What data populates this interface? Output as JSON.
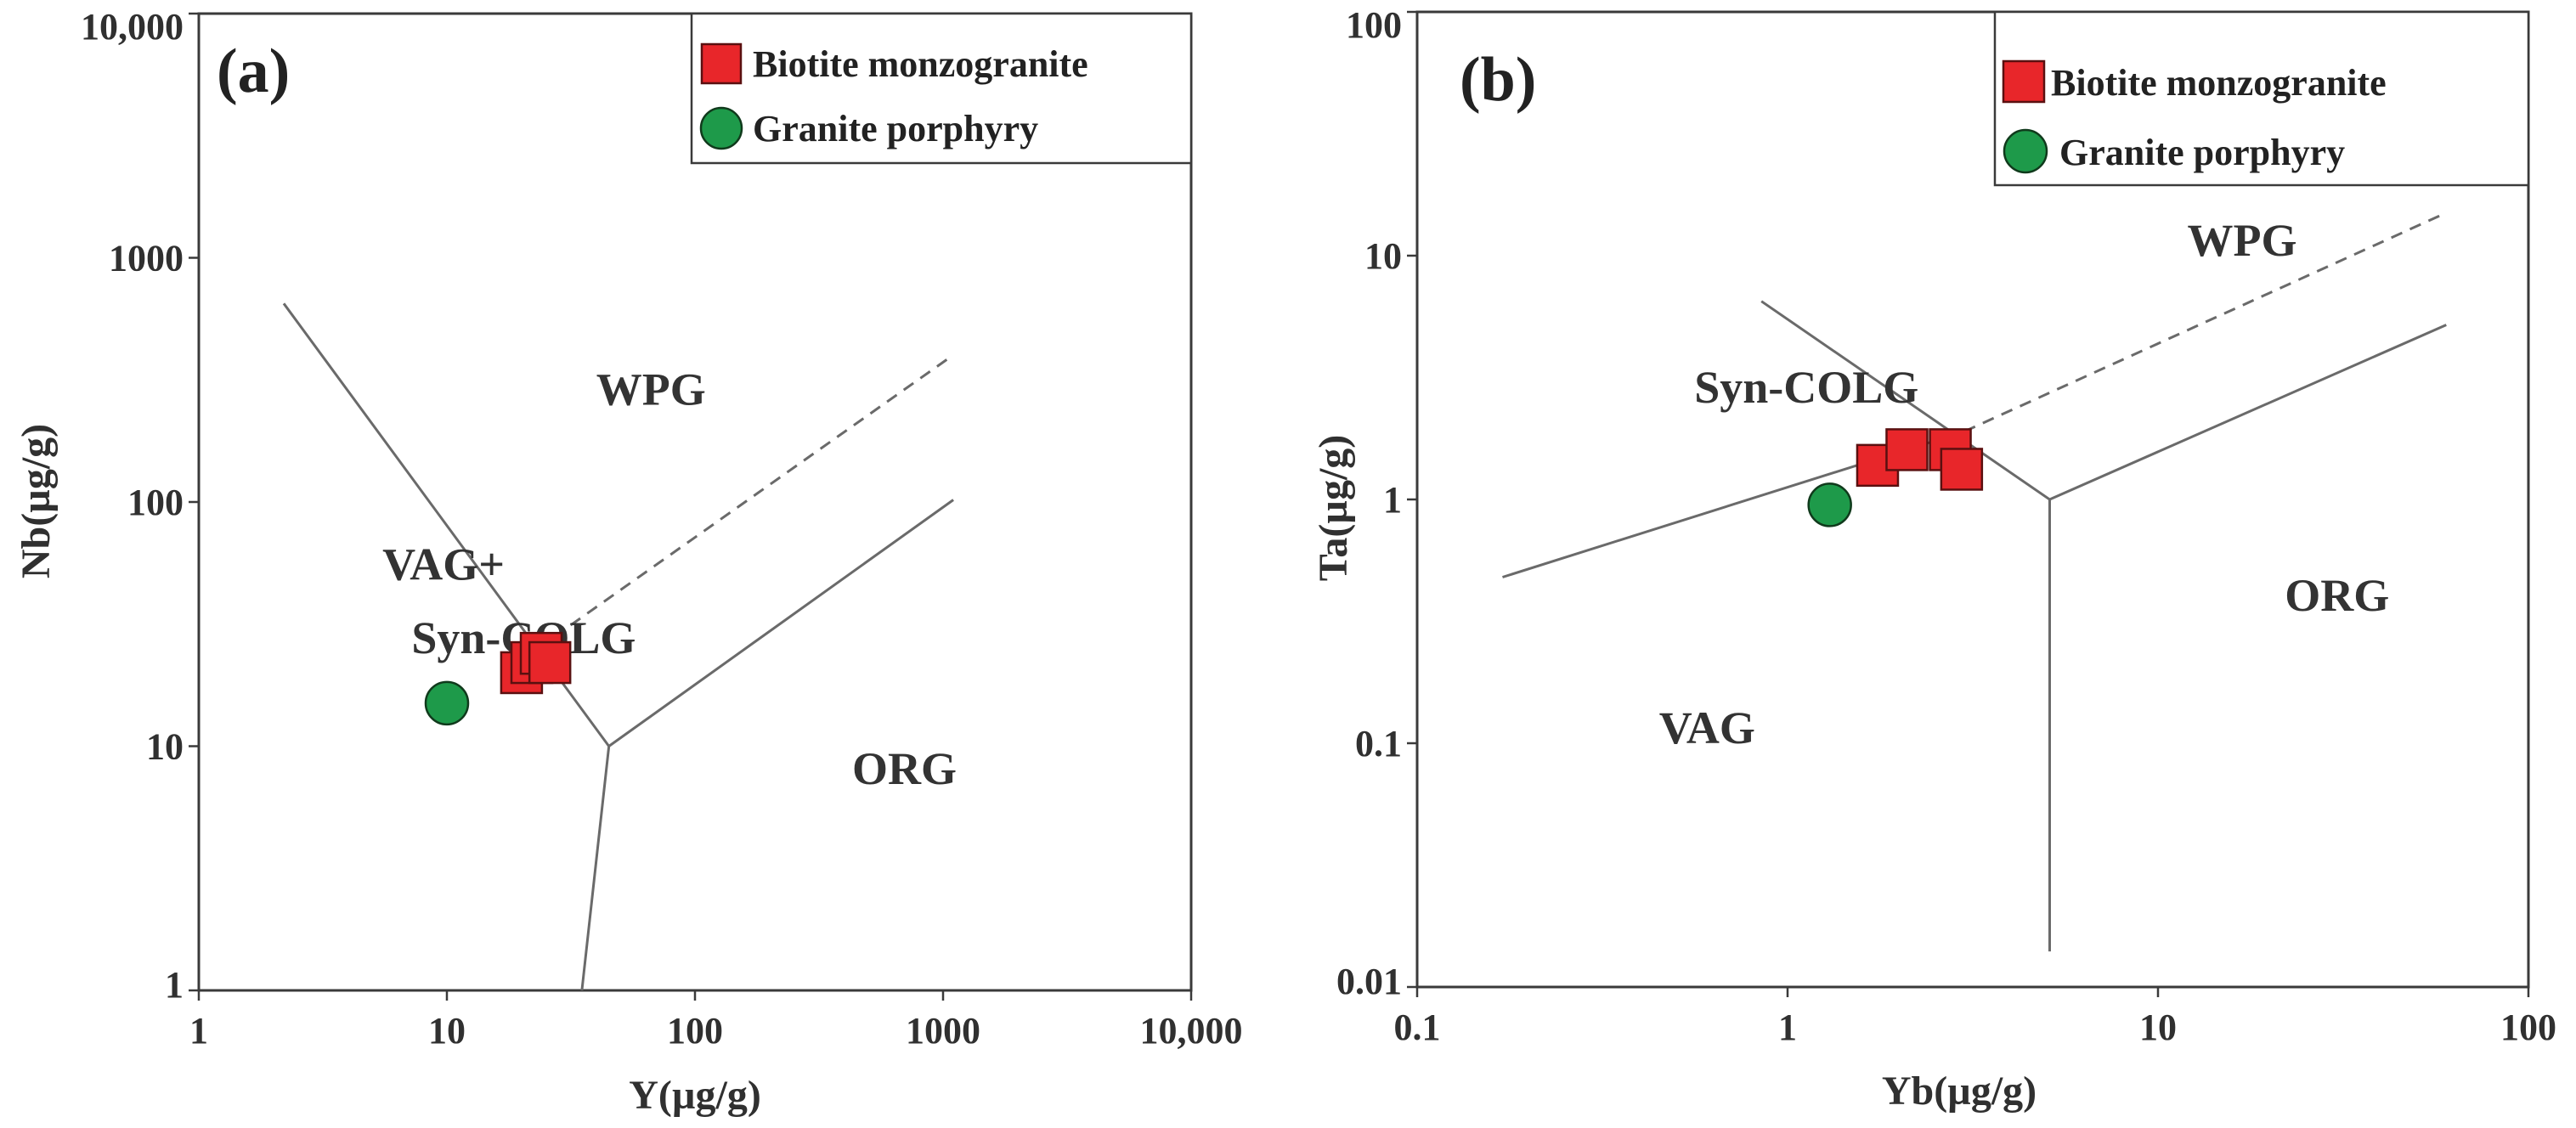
{
  "legend": {
    "biotite_label": "Biotite monzogranite",
    "porphyry_label": "Granite porphyry",
    "biotite_color": "#e8262a",
    "porphyry_color": "#1e9a4a"
  },
  "chart_data": [
    {
      "type": "scatter",
      "panel_label": "(a)",
      "xlabel": "Y(µg/g)",
      "ylabel": "Nb(µg/g)",
      "xscale": "log",
      "yscale": "log",
      "xlim": [
        1,
        10000
      ],
      "ylim": [
        1,
        10000
      ],
      "x_ticks": [
        {
          "value": 1,
          "label": "1"
        },
        {
          "value": 10,
          "label": "10"
        },
        {
          "value": 100,
          "label": "100"
        },
        {
          "value": 1000,
          "label": "1000"
        },
        {
          "value": 10000,
          "label": "10,000"
        }
      ],
      "y_ticks": [
        {
          "value": 1,
          "label": "1"
        },
        {
          "value": 10,
          "label": "10"
        },
        {
          "value": 100,
          "label": "100"
        },
        {
          "value": 1000,
          "label": "1000"
        },
        {
          "value": 10000,
          "label": "10,000"
        }
      ],
      "field_labels": [
        {
          "text": "WPG",
          "x": 40,
          "y": 250
        },
        {
          "text": "VAG+",
          "x": 5.5,
          "y": 48
        },
        {
          "text": "Syn-COLG",
          "x": 7.2,
          "y": 24
        },
        {
          "text": "ORG",
          "x": 430,
          "y": 7
        }
      ],
      "boundaries": [
        {
          "style": "solid",
          "points": [
            [
              2.2,
              650
            ],
            [
              45,
              10
            ],
            [
              35,
              1
            ]
          ]
        },
        {
          "style": "solid",
          "points": [
            [
              45,
              10
            ],
            [
              1100,
              102
            ]
          ]
        },
        {
          "style": "dashed",
          "points": [
            [
              27,
              28
            ],
            [
              1100,
              400
            ]
          ]
        }
      ],
      "series": [
        {
          "name": "Biotite monzogranite",
          "marker": "square",
          "points": [
            [
              20,
              20
            ],
            [
              22,
              22
            ],
            [
              24,
              24
            ],
            [
              26,
              22
            ]
          ]
        },
        {
          "name": "Granite porphyry",
          "marker": "circle",
          "points": [
            [
              10,
              15
            ]
          ]
        }
      ]
    },
    {
      "type": "scatter",
      "panel_label": "(b)",
      "xlabel": "Yb(µg/g)",
      "ylabel": "Ta(µg/g)",
      "xscale": "log",
      "yscale": "log",
      "xlim": [
        0.1,
        100
      ],
      "ylim": [
        0.01,
        100
      ],
      "x_ticks": [
        {
          "value": 0.1,
          "label": "0.1"
        },
        {
          "value": 1,
          "label": "1"
        },
        {
          "value": 10,
          "label": "10"
        },
        {
          "value": 100,
          "label": "100"
        }
      ],
      "y_ticks": [
        {
          "value": 0.01,
          "label": "0.01"
        },
        {
          "value": 0.1,
          "label": "0.1"
        },
        {
          "value": 1,
          "label": "1"
        },
        {
          "value": 10,
          "label": "10"
        },
        {
          "value": 100,
          "label": "100"
        }
      ],
      "field_labels": [
        {
          "text": "WPG",
          "x": 12,
          "y": 10
        },
        {
          "text": "Syn-COLG",
          "x": 0.56,
          "y": 2.5
        },
        {
          "text": "VAG",
          "x": 0.45,
          "y": 0.1
        },
        {
          "text": "ORG",
          "x": 22,
          "y": 0.35
        }
      ],
      "boundaries": [
        {
          "style": "solid",
          "points": [
            [
              0.17,
              0.48
            ],
            [
              3.0,
              1.9
            ]
          ]
        },
        {
          "style": "solid",
          "points": [
            [
              0.85,
              6.5
            ],
            [
              5.1,
              1.0
            ],
            [
              5.1,
              0.014
            ]
          ]
        },
        {
          "style": "solid",
          "points": [
            [
              5.1,
              1.0
            ],
            [
              60,
              5.2
            ]
          ]
        },
        {
          "style": "dashed",
          "points": [
            [
              3.0,
              1.9
            ],
            [
              60,
              15
            ]
          ]
        }
      ],
      "series": [
        {
          "name": "Biotite monzogranite",
          "marker": "square",
          "points": [
            [
              1.75,
              1.38
            ],
            [
              2.1,
              1.6
            ],
            [
              2.75,
              1.6
            ],
            [
              2.95,
              1.33
            ]
          ]
        },
        {
          "name": "Granite porphyry",
          "marker": "circle",
          "points": [
            [
              1.3,
              0.95
            ]
          ]
        }
      ]
    }
  ]
}
